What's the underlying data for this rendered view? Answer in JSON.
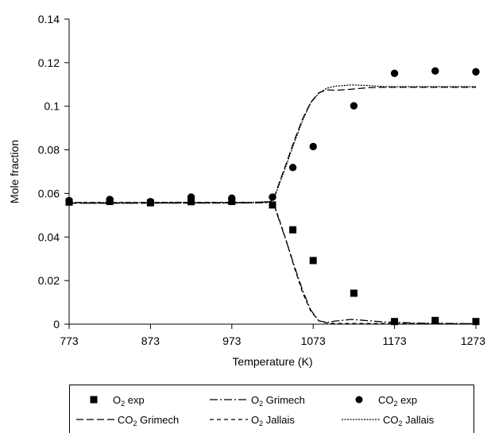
{
  "chart_data": {
    "type": "scatter",
    "title": "",
    "xlabel": "Temperature (K)",
    "ylabel": "Mole fraction",
    "xlim": [
      773,
      1273
    ],
    "ylim": [
      0,
      0.14
    ],
    "xticks": [
      773,
      873,
      973,
      1073,
      1173,
      1273
    ],
    "yticks": [
      0,
      0.02,
      0.04,
      0.06,
      0.08,
      0.1,
      0.12,
      0.14
    ],
    "xtick_labels": [
      "773",
      "873",
      "973",
      "1073",
      "1173",
      "1273"
    ],
    "ytick_labels": [
      "0",
      "0.02",
      "0.04",
      "0.06",
      "0.08",
      "0.1",
      "0.12",
      "0.14"
    ],
    "grid": false,
    "legend_position": "bottom",
    "series": [
      {
        "key": "o2_exp",
        "name": "O2 exp",
        "legend_main": "O",
        "legend_sub": "2",
        "legend_rest": " exp",
        "kind": "marker",
        "marker": "square",
        "color": "#000000",
        "x": [
          773,
          823,
          873,
          923,
          973,
          1023,
          1048,
          1073,
          1123,
          1173,
          1223,
          1273
        ],
        "y": [
          0.056,
          0.0563,
          0.0557,
          0.0562,
          0.0563,
          0.0547,
          0.0433,
          0.0292,
          0.0142,
          0.0012,
          0.0017,
          0.0012
        ]
      },
      {
        "key": "o2_grimech",
        "name": "O2 Grimech",
        "legend_main": "O",
        "legend_sub": "2",
        "legend_rest": " Grimech",
        "kind": "line",
        "dash": "10,3,2,3",
        "color": "#000000",
        "x": [
          773,
          1000,
          1020,
          1025,
          1030,
          1040,
          1050,
          1060,
          1070,
          1080,
          1090,
          1100,
          1120,
          1140,
          1160,
          1200,
          1273
        ],
        "y": [
          0.0555,
          0.0556,
          0.0558,
          0.0545,
          0.049,
          0.038,
          0.0265,
          0.0155,
          0.0065,
          0.0015,
          0.0008,
          0.0014,
          0.0022,
          0.0016,
          0.001,
          0.0005,
          0.0002
        ]
      },
      {
        "key": "co2_exp",
        "name": "CO2 exp",
        "legend_main": "CO",
        "legend_sub": "2",
        "legend_rest": " exp",
        "kind": "marker",
        "marker": "circle",
        "color": "#000000",
        "x": [
          773,
          823,
          873,
          923,
          973,
          1023,
          1048,
          1073,
          1123,
          1173,
          1223,
          1273
        ],
        "y": [
          0.0567,
          0.0572,
          0.0562,
          0.0583,
          0.0578,
          0.0583,
          0.0719,
          0.0815,
          0.1002,
          0.1151,
          0.1162,
          0.1158
        ]
      },
      {
        "key": "co2_grimech",
        "name": "CO2 Grimech",
        "legend_main": "CO",
        "legend_sub": "2",
        "legend_rest": " Grimech",
        "kind": "line",
        "dash": "9,4",
        "color": "#000000",
        "x": [
          773,
          1000,
          1020,
          1025,
          1030,
          1040,
          1050,
          1060,
          1070,
          1080,
          1090,
          1100,
          1120,
          1140,
          1160,
          1200,
          1273
        ],
        "y": [
          0.0555,
          0.0557,
          0.0561,
          0.058,
          0.0635,
          0.0738,
          0.0845,
          0.0942,
          0.1018,
          0.1062,
          0.1075,
          0.1073,
          0.1078,
          0.1085,
          0.1087,
          0.1087,
          0.1087
        ]
      },
      {
        "key": "o2_jallais",
        "name": "O2 Jallais",
        "legend_main": "O",
        "legend_sub": "2",
        "legend_rest": " Jallais",
        "kind": "line",
        "dash": "5,4",
        "color": "#000000",
        "x": [
          773,
          1000,
          1020,
          1025,
          1030,
          1040,
          1050,
          1060,
          1070,
          1080,
          1090,
          1100,
          1140,
          1200,
          1273
        ],
        "y": [
          0.0558,
          0.0559,
          0.056,
          0.0546,
          0.0495,
          0.0382,
          0.0258,
          0.0145,
          0.006,
          0.0015,
          0.0005,
          0.0003,
          0.0003,
          0.0003,
          0.0002
        ]
      },
      {
        "key": "co2_jallais",
        "name": "CO2 Jallais",
        "legend_main": "CO",
        "legend_sub": "2",
        "legend_rest": " Jallais",
        "kind": "line",
        "dash": "2,1.5",
        "color": "#000000",
        "x": [
          773,
          1000,
          1020,
          1025,
          1030,
          1040,
          1050,
          1060,
          1070,
          1080,
          1090,
          1100,
          1120,
          1140,
          1160,
          1200,
          1273
        ],
        "y": [
          0.0558,
          0.0559,
          0.0563,
          0.058,
          0.0628,
          0.073,
          0.0835,
          0.0935,
          0.1015,
          0.106,
          0.1083,
          0.1092,
          0.1098,
          0.1095,
          0.109,
          0.109,
          0.109
        ]
      }
    ]
  }
}
